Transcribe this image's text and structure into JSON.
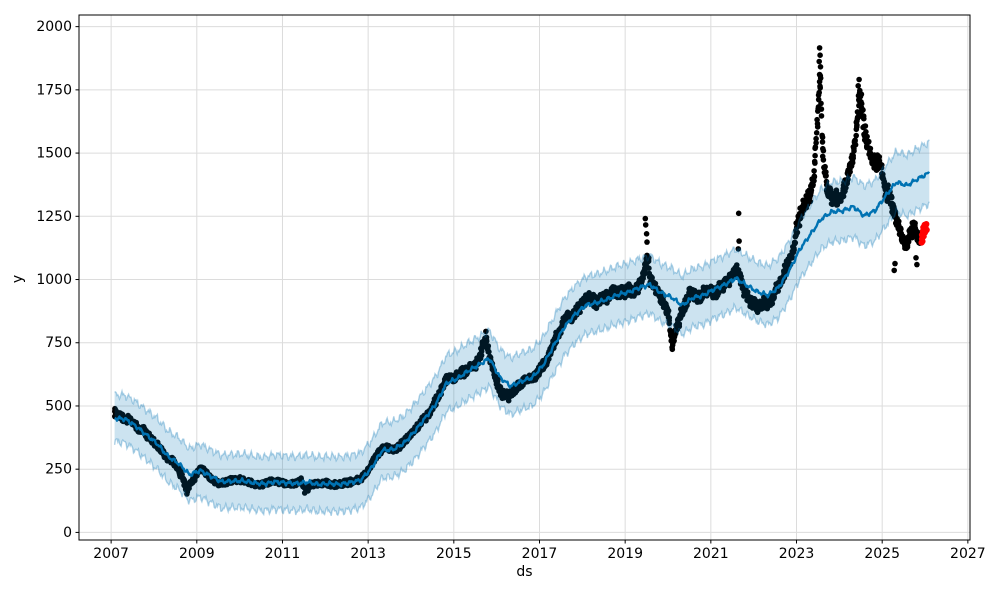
{
  "chart_data": {
    "type": "scatter",
    "subtype": "prophet-forecast",
    "title": "",
    "xlabel": "ds",
    "ylabel": "y",
    "grid": true,
    "legend": "none",
    "xlim": [
      2006.25,
      2027.05
    ],
    "ylim": [
      -30,
      2046
    ],
    "x_ticks": [
      2007,
      2009,
      2011,
      2013,
      2015,
      2017,
      2019,
      2021,
      2023,
      2025,
      2027
    ],
    "x_tick_labels": [
      "2007",
      "2009",
      "2011",
      "2013",
      "2015",
      "2017",
      "2019",
      "2021",
      "2023",
      "2025",
      "2027"
    ],
    "y_ticks": [
      0,
      250,
      500,
      750,
      1000,
      1250,
      1500,
      1750,
      2000
    ],
    "y_tick_labels": [
      "0",
      "250",
      "500",
      "750",
      "1000",
      "1250",
      "1500",
      "1750",
      "2000"
    ],
    "colors": {
      "actuals": "#000000",
      "future_actuals": "#ff0000",
      "forecast_line": "#0072B2",
      "band_fill": "rgba(0,114,178,0.2)",
      "band_edge": "rgba(0,114,178,0.3)",
      "grid": "#dcdcdc",
      "spine": "#000000",
      "tick_text": "#000000"
    },
    "actuals_range": [
      2007.08,
      2025.88
    ],
    "actuals_backbone": [
      [
        2007.08,
        475
      ],
      [
        2007.17,
        462
      ],
      [
        2007.25,
        458
      ],
      [
        2007.33,
        445
      ],
      [
        2007.42,
        452
      ],
      [
        2007.5,
        435
      ],
      [
        2007.58,
        420
      ],
      [
        2007.67,
        402
      ],
      [
        2007.75,
        408
      ],
      [
        2007.83,
        388
      ],
      [
        2007.92,
        372
      ],
      [
        2008.0,
        358
      ],
      [
        2008.08,
        342
      ],
      [
        2008.17,
        328
      ],
      [
        2008.25,
        305
      ],
      [
        2008.33,
        292
      ],
      [
        2008.42,
        286
      ],
      [
        2008.5,
        270
      ],
      [
        2008.58,
        246
      ],
      [
        2008.67,
        215
      ],
      [
        2008.75,
        178
      ],
      [
        2008.83,
        188
      ],
      [
        2008.92,
        208
      ],
      [
        2009.0,
        235
      ],
      [
        2009.08,
        252
      ],
      [
        2009.17,
        246
      ],
      [
        2009.25,
        226
      ],
      [
        2009.33,
        214
      ],
      [
        2009.42,
        202
      ],
      [
        2009.5,
        192
      ],
      [
        2009.67,
        198
      ],
      [
        2009.83,
        206
      ],
      [
        2010.0,
        210
      ],
      [
        2010.17,
        199
      ],
      [
        2010.33,
        193
      ],
      [
        2010.5,
        189
      ],
      [
        2010.67,
        197
      ],
      [
        2010.83,
        203
      ],
      [
        2011.0,
        197
      ],
      [
        2011.17,
        189
      ],
      [
        2011.33,
        197
      ],
      [
        2011.42,
        207
      ],
      [
        2011.5,
        182
      ],
      [
        2011.58,
        172
      ],
      [
        2011.67,
        187
      ],
      [
        2011.83,
        193
      ],
      [
        2012.0,
        197
      ],
      [
        2012.17,
        187
      ],
      [
        2012.33,
        192
      ],
      [
        2012.5,
        197
      ],
      [
        2012.67,
        203
      ],
      [
        2012.83,
        212
      ],
      [
        2013.0,
        242
      ],
      [
        2013.08,
        268
      ],
      [
        2013.17,
        297
      ],
      [
        2013.25,
        318
      ],
      [
        2013.33,
        331
      ],
      [
        2013.42,
        339
      ],
      [
        2013.5,
        331
      ],
      [
        2013.58,
        323
      ],
      [
        2013.67,
        333
      ],
      [
        2013.75,
        346
      ],
      [
        2013.83,
        357
      ],
      [
        2013.92,
        374
      ],
      [
        2014.0,
        391
      ],
      [
        2014.08,
        406
      ],
      [
        2014.17,
        421
      ],
      [
        2014.25,
        439
      ],
      [
        2014.33,
        456
      ],
      [
        2014.42,
        471
      ],
      [
        2014.5,
        496
      ],
      [
        2014.58,
        521
      ],
      [
        2014.67,
        547
      ],
      [
        2014.75,
        582
      ],
      [
        2014.83,
        606
      ],
      [
        2014.92,
        616
      ],
      [
        2015.0,
        612
      ],
      [
        2015.08,
        621
      ],
      [
        2015.17,
        636
      ],
      [
        2015.25,
        629
      ],
      [
        2015.33,
        646
      ],
      [
        2015.42,
        656
      ],
      [
        2015.5,
        661
      ],
      [
        2015.58,
        681
      ],
      [
        2015.67,
        731
      ],
      [
        2015.75,
        763
      ],
      [
        2015.83,
        702
      ],
      [
        2015.92,
        641
      ],
      [
        2016.0,
        601
      ],
      [
        2016.08,
        561
      ],
      [
        2016.17,
        542
      ],
      [
        2016.25,
        551
      ],
      [
        2016.33,
        546
      ],
      [
        2016.42,
        561
      ],
      [
        2016.5,
        579
      ],
      [
        2016.58,
        591
      ],
      [
        2016.67,
        601
      ],
      [
        2016.75,
        613
      ],
      [
        2016.83,
        601
      ],
      [
        2016.92,
        619
      ],
      [
        2017.0,
        641
      ],
      [
        2017.08,
        659
      ],
      [
        2017.17,
        681
      ],
      [
        2017.25,
        711
      ],
      [
        2017.33,
        749
      ],
      [
        2017.42,
        781
      ],
      [
        2017.5,
        806
      ],
      [
        2017.58,
        841
      ],
      [
        2017.67,
        856
      ],
      [
        2017.75,
        846
      ],
      [
        2017.83,
        866
      ],
      [
        2017.92,
        881
      ],
      [
        2018.0,
        901
      ],
      [
        2018.08,
        921
      ],
      [
        2018.17,
        931
      ],
      [
        2018.25,
        916
      ],
      [
        2018.33,
        906
      ],
      [
        2018.42,
        921
      ],
      [
        2018.5,
        936
      ],
      [
        2018.58,
        926
      ],
      [
        2018.67,
        946
      ],
      [
        2018.75,
        951
      ],
      [
        2018.83,
        941
      ],
      [
        2018.92,
        956
      ],
      [
        2019.0,
        953
      ],
      [
        2019.08,
        961
      ],
      [
        2019.17,
        946
      ],
      [
        2019.25,
        963
      ],
      [
        2019.33,
        976
      ],
      [
        2019.42,
        1012
      ],
      [
        2019.5,
        1082
      ],
      [
        2019.55,
        1052
      ],
      [
        2019.58,
        1002
      ],
      [
        2019.67,
        976
      ],
      [
        2019.75,
        951
      ],
      [
        2019.83,
        936
      ],
      [
        2019.92,
        906
      ],
      [
        2020.0,
        862
      ],
      [
        2020.05,
        792
      ],
      [
        2020.1,
        748
      ],
      [
        2020.17,
        792
      ],
      [
        2020.25,
        832
      ],
      [
        2020.33,
        872
      ],
      [
        2020.42,
        906
      ],
      [
        2020.5,
        941
      ],
      [
        2020.58,
        951
      ],
      [
        2020.67,
        936
      ],
      [
        2020.75,
        926
      ],
      [
        2020.83,
        946
      ],
      [
        2020.92,
        951
      ],
      [
        2021.0,
        961
      ],
      [
        2021.08,
        946
      ],
      [
        2021.17,
        959
      ],
      [
        2021.25,
        973
      ],
      [
        2021.33,
        986
      ],
      [
        2021.42,
        1001
      ],
      [
        2021.5,
        1011
      ],
      [
        2021.58,
        1031
      ],
      [
        2021.67,
        1021
      ],
      [
        2021.75,
        966
      ],
      [
        2021.83,
        941
      ],
      [
        2021.92,
        916
      ],
      [
        2022.0,
        906
      ],
      [
        2022.08,
        891
      ],
      [
        2022.17,
        901
      ],
      [
        2022.25,
        916
      ],
      [
        2022.33,
        906
      ],
      [
        2022.42,
        926
      ],
      [
        2022.5,
        951
      ],
      [
        2022.58,
        976
      ],
      [
        2022.67,
        1001
      ],
      [
        2022.75,
        1041
      ],
      [
        2022.83,
        1071
      ],
      [
        2022.92,
        1111
      ],
      [
        2023.0,
        1191
      ],
      [
        2023.08,
        1251
      ],
      [
        2023.17,
        1291
      ],
      [
        2023.25,
        1311
      ],
      [
        2023.33,
        1341
      ],
      [
        2023.42,
        1421
      ],
      [
        2023.5,
        1651
      ],
      [
        2023.55,
        1831
      ],
      [
        2023.6,
        1561
      ],
      [
        2023.65,
        1431
      ],
      [
        2023.75,
        1341
      ],
      [
        2023.83,
        1311
      ],
      [
        2023.92,
        1331
      ],
      [
        2024.0,
        1306
      ],
      [
        2024.08,
        1341
      ],
      [
        2024.17,
        1391
      ],
      [
        2024.25,
        1431
      ],
      [
        2024.33,
        1501
      ],
      [
        2024.42,
        1641
      ],
      [
        2024.47,
        1751
      ],
      [
        2024.53,
        1681
      ],
      [
        2024.58,
        1591
      ],
      [
        2024.67,
        1531
      ],
      [
        2024.75,
        1481
      ],
      [
        2024.83,
        1451
      ],
      [
        2024.92,
        1471
      ],
      [
        2025.0,
        1411
      ],
      [
        2025.08,
        1341
      ],
      [
        2025.17,
        1341
      ],
      [
        2025.25,
        1281
      ],
      [
        2025.33,
        1241
      ],
      [
        2025.42,
        1191
      ],
      [
        2025.5,
        1151
      ],
      [
        2025.58,
        1141
      ],
      [
        2025.67,
        1181
      ],
      [
        2025.75,
        1211
      ],
      [
        2025.83,
        1171
      ],
      [
        2025.88,
        1151
      ]
    ],
    "outlier_points": [
      [
        2008.77,
        152
      ],
      [
        2008.78,
        161
      ],
      [
        2011.52,
        156
      ],
      [
        2015.75,
        795
      ],
      [
        2016.28,
        521
      ],
      [
        2019.47,
        1241
      ],
      [
        2019.48,
        1216
      ],
      [
        2019.5,
        1181
      ],
      [
        2019.51,
        1148
      ],
      [
        2020.1,
        724
      ],
      [
        2020.11,
        741
      ],
      [
        2021.64,
        1121
      ],
      [
        2021.65,
        1262
      ],
      [
        2021.66,
        1152
      ],
      [
        2023.53,
        1862
      ],
      [
        2023.54,
        1916
      ],
      [
        2023.55,
        1887
      ],
      [
        2023.56,
        1841
      ],
      [
        2024.44,
        1766
      ],
      [
        2024.46,
        1791
      ],
      [
        2025.28,
        1036
      ],
      [
        2025.3,
        1063
      ],
      [
        2025.79,
        1086
      ],
      [
        2025.81,
        1059
      ]
    ],
    "future_actuals": [
      [
        2025.92,
        1146
      ],
      [
        2025.93,
        1161
      ],
      [
        2025.93,
        1176
      ],
      [
        2025.94,
        1151
      ],
      [
        2025.95,
        1191
      ],
      [
        2025.96,
        1206
      ],
      [
        2025.97,
        1171
      ],
      [
        2025.98,
        1201
      ],
      [
        2025.99,
        1216
      ],
      [
        2026.0,
        1186
      ],
      [
        2026.01,
        1206
      ],
      [
        2026.03,
        1219
      ],
      [
        2026.04,
        1196
      ]
    ],
    "forecast_knots": [
      [
        2007.08,
        452,
        92
      ],
      [
        2007.33,
        448,
        94
      ],
      [
        2007.58,
        420,
        96
      ],
      [
        2007.83,
        385,
        98
      ],
      [
        2008.08,
        350,
        100
      ],
      [
        2008.33,
        300,
        101
      ],
      [
        2008.58,
        272,
        102
      ],
      [
        2008.83,
        228,
        103
      ],
      [
        2009.08,
        245,
        104
      ],
      [
        2009.33,
        222,
        104
      ],
      [
        2009.58,
        200,
        105
      ],
      [
        2009.83,
        203,
        105
      ],
      [
        2010.08,
        204,
        106
      ],
      [
        2010.33,
        196,
        106
      ],
      [
        2010.58,
        192,
        106
      ],
      [
        2010.83,
        200,
        107
      ],
      [
        2011.08,
        196,
        107
      ],
      [
        2011.33,
        193,
        107
      ],
      [
        2011.58,
        199,
        107
      ],
      [
        2011.83,
        190,
        108
      ],
      [
        2012.08,
        193,
        108
      ],
      [
        2012.33,
        190,
        108
      ],
      [
        2012.58,
        197,
        108
      ],
      [
        2012.83,
        207,
        108
      ],
      [
        2013.08,
        255,
        109
      ],
      [
        2013.33,
        325,
        109
      ],
      [
        2013.58,
        328,
        109
      ],
      [
        2013.83,
        352,
        109
      ],
      [
        2014.08,
        398,
        110
      ],
      [
        2014.33,
        452,
        110
      ],
      [
        2014.58,
        508,
        110
      ],
      [
        2014.83,
        590,
        110
      ],
      [
        2015.08,
        608,
        111
      ],
      [
        2015.33,
        638,
        111
      ],
      [
        2015.58,
        662,
        111
      ],
      [
        2015.83,
        688,
        111
      ],
      [
        2016.08,
        612,
        111
      ],
      [
        2016.33,
        578,
        112
      ],
      [
        2016.58,
        598,
        112
      ],
      [
        2016.83,
        612,
        112
      ],
      [
        2017.08,
        660,
        112
      ],
      [
        2017.33,
        738,
        112
      ],
      [
        2017.58,
        812,
        113
      ],
      [
        2017.83,
        862,
        113
      ],
      [
        2018.08,
        898,
        113
      ],
      [
        2018.33,
        908,
        113
      ],
      [
        2018.58,
        922,
        113
      ],
      [
        2018.83,
        940,
        114
      ],
      [
        2019.08,
        950,
        114
      ],
      [
        2019.33,
        968,
        114
      ],
      [
        2019.58,
        980,
        114
      ],
      [
        2019.83,
        948,
        114
      ],
      [
        2020.08,
        930,
        115
      ],
      [
        2020.33,
        898,
        115
      ],
      [
        2020.58,
        928,
        115
      ],
      [
        2020.83,
        938,
        115
      ],
      [
        2021.08,
        962,
        115
      ],
      [
        2021.33,
        980,
        116
      ],
      [
        2021.58,
        1005,
        116
      ],
      [
        2021.83,
        978,
        116
      ],
      [
        2022.08,
        952,
        116
      ],
      [
        2022.33,
        938,
        116
      ],
      [
        2022.58,
        968,
        117
      ],
      [
        2022.83,
        1035,
        117
      ],
      [
        2023.08,
        1120,
        117
      ],
      [
        2023.33,
        1180,
        117
      ],
      [
        2023.58,
        1240,
        118
      ],
      [
        2023.83,
        1268,
        118
      ],
      [
        2024.08,
        1272,
        118
      ],
      [
        2024.33,
        1288,
        118
      ],
      [
        2024.58,
        1252,
        119
      ],
      [
        2024.83,
        1272,
        119
      ],
      [
        2025.08,
        1330,
        119
      ],
      [
        2025.33,
        1385,
        120
      ],
      [
        2025.58,
        1372,
        120
      ],
      [
        2025.83,
        1398,
        121
      ],
      [
        2026.1,
        1422,
        121
      ]
    ]
  }
}
